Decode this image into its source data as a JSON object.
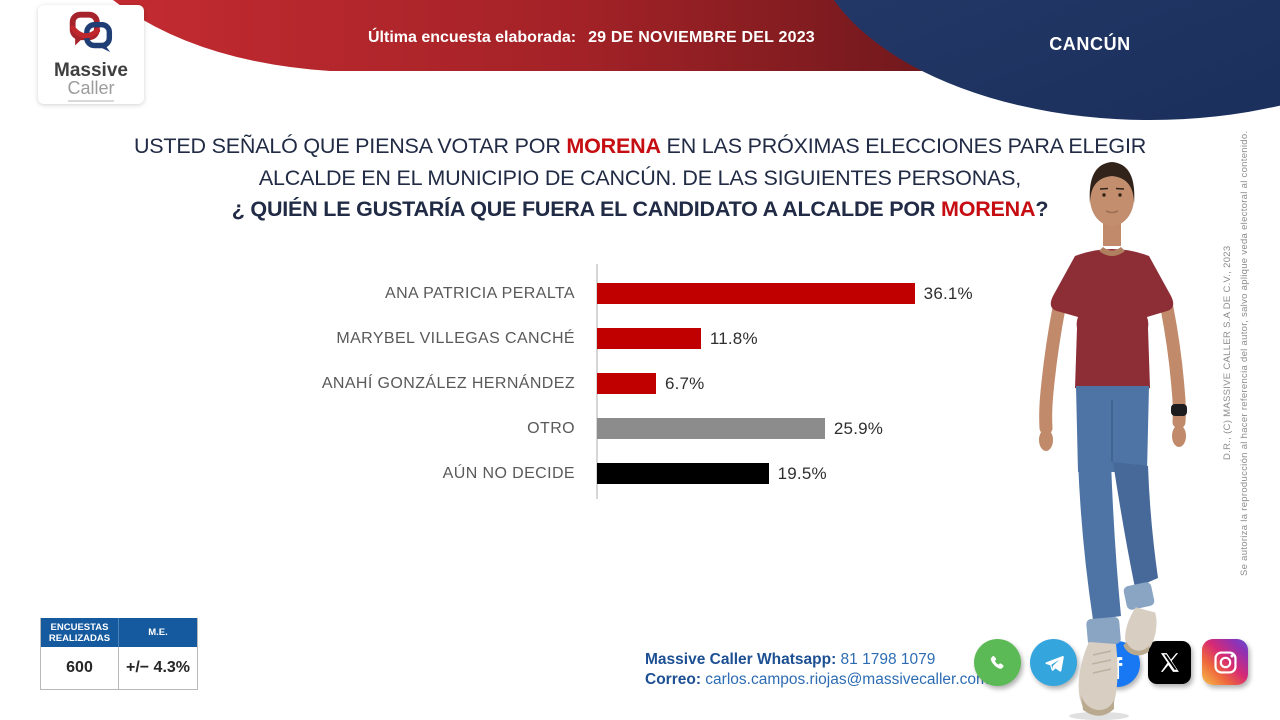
{
  "brand": {
    "name_line1": "Massive",
    "name_line2": "Caller"
  },
  "header": {
    "banner_label": "Última encuesta elaborada:",
    "banner_date": "29 DE NOVIEMBRE DEL 2023",
    "region_label": "CANCÚN"
  },
  "question": {
    "line1_pre": "USTED SEÑALÓ QUE PIENSA VOTAR POR ",
    "line1_party": "MORENA",
    "line1_post": " EN LAS PRÓXIMAS ELECCIONES PARA ELEGIR",
    "line2": "ALCALDE EN EL MUNICIPIO DE CANCÚN. DE LAS SIGUIENTES PERSONAS,",
    "line3_pre": "¿ QUIÉN LE GUSTARÍA QUE FUERA EL CANDIDATO A ALCALDE POR ",
    "line3_party": "MORENA",
    "line3_post": "?"
  },
  "chart_data": {
    "type": "bar",
    "orientation": "horizontal",
    "title": "¿Quién le gustaría que fuera el candidato a alcalde por MORENA? (Cancún)",
    "categories": [
      "ANA PATRICIA PERALTA",
      "MARYBEL VILLEGAS CANCHÉ",
      "ANAHÍ GONZÁLEZ HERNÁNDEZ",
      "OTRO",
      "AÚN NO DECIDE"
    ],
    "values": [
      36.1,
      11.8,
      6.7,
      25.9,
      19.5
    ],
    "value_labels": [
      "36.1%",
      "11.8%",
      "6.7%",
      "25.9%",
      "19.5%"
    ],
    "bar_colors": [
      "#c00000",
      "#c00000",
      "#c00000",
      "#8c8c8c",
      "#000000"
    ],
    "xlim": [
      0,
      40
    ],
    "grid": false,
    "legend": "none"
  },
  "stats_table": {
    "col1_header": "ENCUESTAS REALIZADAS",
    "col2_header": "M.E.",
    "col1_value": "600",
    "col2_value": "+/− 4.3%"
  },
  "contact": {
    "whatsapp_label": "Massive Caller Whatsapp:",
    "whatsapp_number": "81 1798 1079",
    "email_label": "Correo:",
    "email": "carlos.campos.riojas@massivecaller.com"
  },
  "social_icons": [
    "whatsapp-icon",
    "telegram-icon",
    "facebook-icon",
    "x-icon",
    "instagram-icon"
  ],
  "copyright": {
    "line1": "D.R., (C) MASSIVE CALLER S.A DE C.V., 2023",
    "line2": "Se autoriza la reproducción al hacer referencia del autor, salvo aplique veda electoral al contenido."
  },
  "colors": {
    "accent_red": "#c50d12",
    "banner_red_start": "#bf2a2f",
    "banner_red_end": "#6d181c",
    "navy_shape": "#233d6d",
    "table_header_blue": "#155a9e",
    "question_text": "#212b45",
    "bar_label_gray": "#595959"
  }
}
